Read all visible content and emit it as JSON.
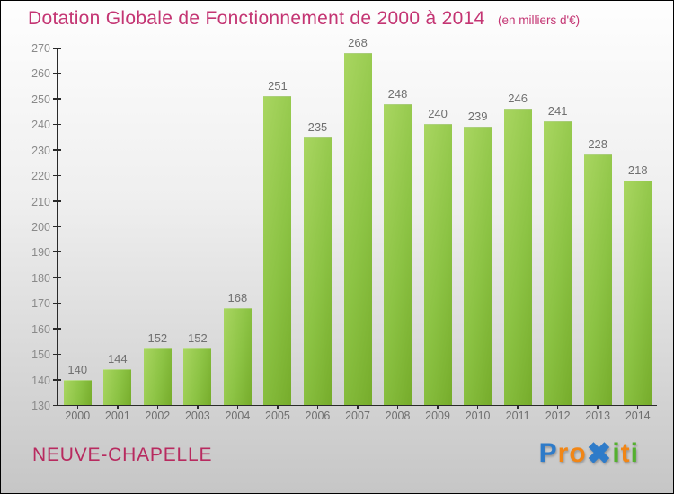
{
  "header": {
    "title": "Dotation Globale de Fonctionnement de 2000 à 2014",
    "subtitle": "(en milliers d'€)"
  },
  "chart_data": {
    "type": "bar",
    "title": "Dotation Globale de Fonctionnement de 2000 à 2014",
    "subtitle": "(en milliers d'€)",
    "unit": "milliers d'€",
    "categories": [
      "2000",
      "2001",
      "2002",
      "2003",
      "2004",
      "2005",
      "2006",
      "2007",
      "2008",
      "2009",
      "2010",
      "2011",
      "2012",
      "2013",
      "2014"
    ],
    "values": [
      140,
      144,
      152,
      152,
      168,
      251,
      235,
      268,
      248,
      240,
      239,
      246,
      241,
      228,
      218
    ],
    "xlabel": "",
    "ylabel": "",
    "ylim": [
      130,
      270
    ],
    "ytick_step": 10,
    "grid": false,
    "legend": false,
    "value_labels_shown": true
  },
  "footer": {
    "commune": "NEUVE-CHAPELLE",
    "logo": {
      "name": "Proxiti",
      "letters": [
        {
          "char": "P",
          "color": "#2e7bc9",
          "x": false
        },
        {
          "char": "r",
          "color": "#f18616",
          "x": false
        },
        {
          "char": "o",
          "color": "#f18616",
          "x": false
        },
        {
          "char": "✖",
          "color": "#2e7bc9",
          "x": true
        },
        {
          "char": "i",
          "color": "#54b02f",
          "x": false
        },
        {
          "char": "t",
          "color": "#f18616",
          "x": false
        },
        {
          "char": "i",
          "color": "#54b02f",
          "x": false
        }
      ]
    }
  },
  "colors": {
    "accent_title": "#c43573",
    "accent_commune": "#b82a5f",
    "bar_gradient_start": "#a9d661",
    "bar_gradient_mid": "#8cc344",
    "bar_gradient_end": "#76ac2b",
    "axis": "#2a2a2a",
    "y_label": "#8a8a8a",
    "x_label": "#6f6f6f",
    "value_label": "#6f6f6f",
    "background_top": "#fefefe",
    "background_bottom": "#c6c6c6"
  }
}
